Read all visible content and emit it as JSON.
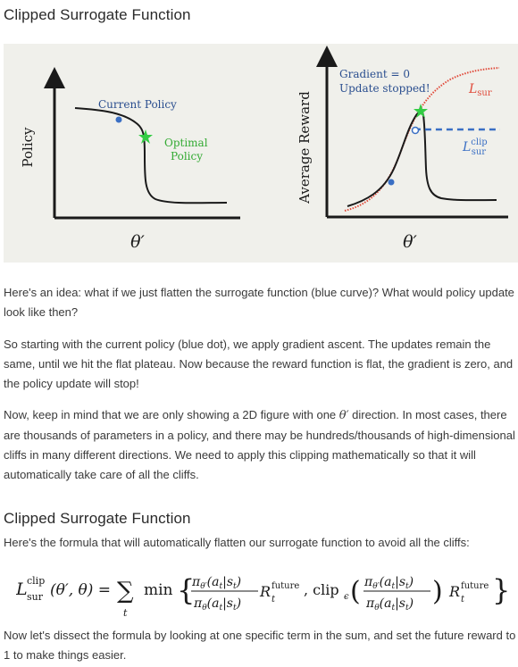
{
  "section1": {
    "title": "Clipped Surrogate Function"
  },
  "figure": {
    "left_plot": {
      "ylabel": "Policy",
      "xlabel": "θ′",
      "current_policy_label": "Current Policy",
      "optimal_label_line1": "Optimal",
      "optimal_label_line2": "Policy"
    },
    "right_plot": {
      "ylabel": "Average Reward",
      "xlabel": "θ′",
      "gradient_label": "Gradient = 0",
      "update_label": "Update stopped!",
      "lsur_label": "L",
      "lsur_sub": "sur",
      "lclip_label": "L",
      "lclip_sup": "clip",
      "lclip_sub": "sur"
    },
    "colors": {
      "blue": "#3a6fc4",
      "red": "#e04a3a",
      "green": "#33cc44",
      "dark": "#1a1a1a",
      "background": "#f0f0eb"
    }
  },
  "paragraphs": {
    "p1": "Here's an idea: what if we just flatten the surrogate function (blue curve)? What would policy update look like then?",
    "p2": "So starting with the current policy (blue dot), we apply gradient ascent. The updates remain the same, until we hit the flat plateau. Now because the reward function is flat, the gradient is zero, and the policy update will stop!",
    "p3a": "Now, keep in mind that we are only showing a 2D figure with one ",
    "p3theta": "θ′",
    "p3b": " direction. In most cases, there are thousands of parameters in a policy, and there may be hundreds/thousands of high-dimensional cliffs in many different directions. We need to apply this clipping mathematically so that it will automatically take care of all the cliffs."
  },
  "section2": {
    "title": "Clipped Surrogate Function",
    "intro": "Here's the formula that will automatically flatten our surrogate function to avoid all the cliffs:"
  },
  "formula": {
    "L": "L",
    "clip_sup": "clip",
    "sur_sub": "sur",
    "args": "(θ′, θ) =",
    "sum": "∑",
    "sum_sub": "t",
    "min": "min",
    "lbrace": "{",
    "rbrace": "}",
    "num": "π",
    "num_sub": "θ′",
    "num_arg": "(a",
    "num_arg_sub": "t",
    "num_arg2": "|s",
    "num_arg2_sub": "t",
    "num_close": ")",
    "den": "π",
    "den_sub": "θ",
    "R": "R",
    "R_sup": "future",
    "R_sub": "t",
    "comma_clip": ", clip",
    "clip_sub": "ϵ"
  },
  "closing": {
    "text": "Now let's dissect the formula by looking at one specific term in the sum, and set the future reward to 1 to make things easier."
  }
}
